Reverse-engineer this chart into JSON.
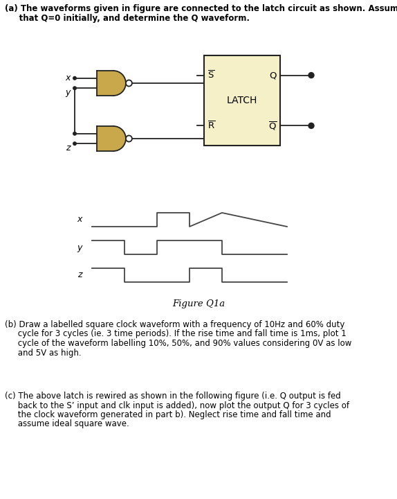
{
  "bg_color": "#ffffff",
  "gate_fill": "#c8a84b",
  "gate_edge": "#222222",
  "latch_fill": "#f5f0c8",
  "latch_edge": "#222222",
  "text_color": "#000000",
  "waveform_color": "#444444",
  "waveform_lw": 1.3,
  "fig_caption": "Figure Q1a",
  "text_a_line1": "(a) The waveforms given in figure are connected to the latch circuit as shown. Assume",
  "text_a_line2": "     that Q=0 initially, and determine the Q waveform.",
  "text_b_line1": "(b) Draw a labelled square clock waveform with a frequency of 10Hz and 60% duty",
  "text_b_line2": "     cycle for 3 cycles (ie. 3 time periods). If the rise time and fall time is 1ms, plot 1",
  "text_b_line3": "     cycle of the waveform labelling 10%, 50%, and 90% values considering 0V as low",
  "text_b_line4": "     and 5V as high.",
  "text_c_line1": "(c) The above latch is rewired as shown in the following figure (i.e. Q output is fed",
  "text_c_line2": "     back to the S’ input and clk input is added), now plot the output Q for 3 cycles of",
  "text_c_line3": "     the clock waveform generated in part b). Neglect rise time and fall time and",
  "text_c_line4": "     assume ideal square wave.",
  "x_t": [
    0,
    2,
    2,
    3,
    3,
    4,
    4,
    6
  ],
  "x_v": [
    0,
    0,
    1,
    1,
    0,
    1,
    1,
    0
  ],
  "y_t": [
    0,
    1,
    1,
    2,
    2,
    4,
    4,
    6
  ],
  "y_v": [
    1,
    1,
    0,
    0,
    1,
    1,
    0,
    0
  ],
  "z_t": [
    0,
    1,
    1,
    3,
    3,
    4,
    4,
    6
  ],
  "z_v": [
    1,
    1,
    0,
    0,
    1,
    1,
    0,
    0
  ]
}
